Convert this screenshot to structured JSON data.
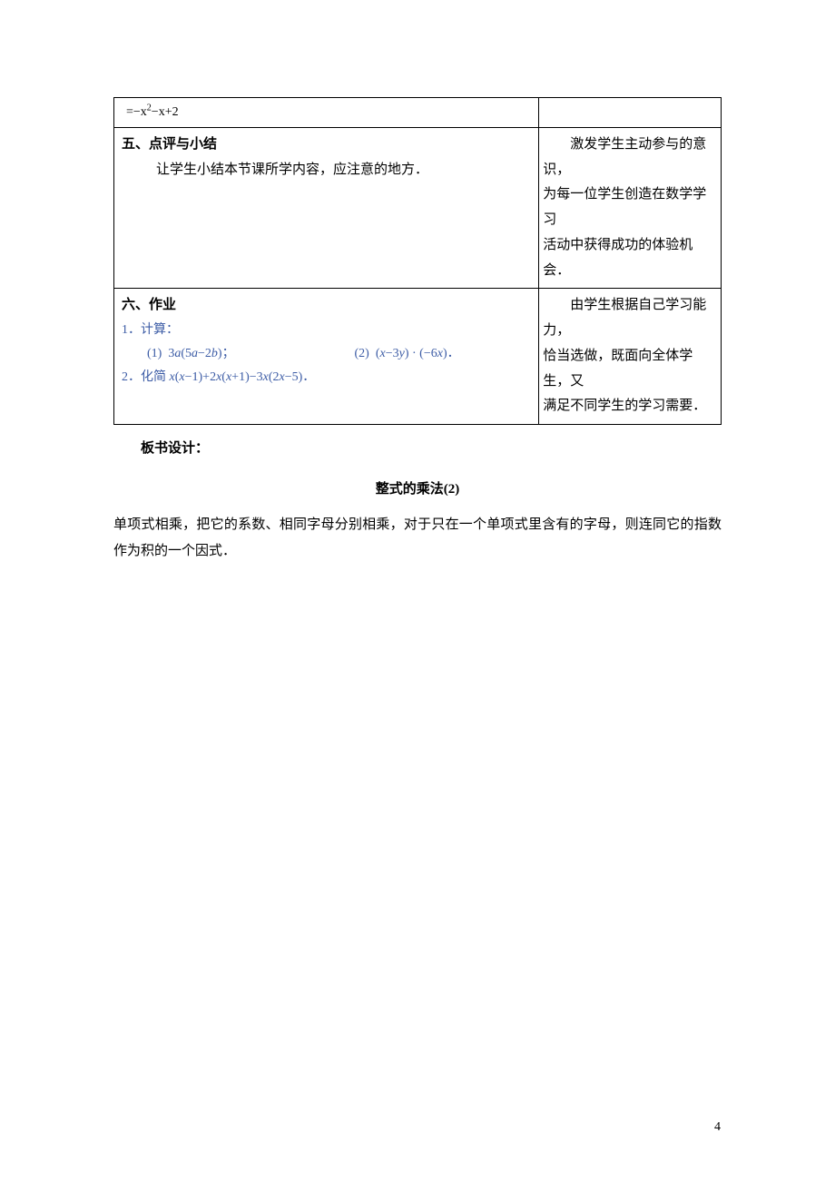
{
  "row1": {
    "left_eq": "=−x²−x+2"
  },
  "row2": {
    "title": "五、点评与小结",
    "content": "让学生小结本节课所学内容，应注意的地方．",
    "right_line1": "激发学生主动参与的意识，",
    "right_line2": "为每一位学生创造在数学学习",
    "right_line3": "活动中获得成功的体验机会．"
  },
  "row3": {
    "title": "六、作业",
    "line1": "1．计算：",
    "item1": "(1)  3a(5a−2b)；",
    "item2": "(2)  (x−3y) · (−6x)．",
    "line2": "2．化简 x(x−1)+2x(x+1)−3x(2x−5)．",
    "right_line1": "由学生根据自己学习能力，",
    "right_line2": "恰当选做，既面向全体学生，又",
    "right_line3": "满足不同学生的学习需要．"
  },
  "board": {
    "label": "板书设计：",
    "title": "整式的乘法(2)",
    "body": "单项式相乘，把它的系数、相同字母分别相乘，对于只在一个单项式里含有的字母，则连同它的指数作为积的一个因式．"
  },
  "page_number": "4"
}
